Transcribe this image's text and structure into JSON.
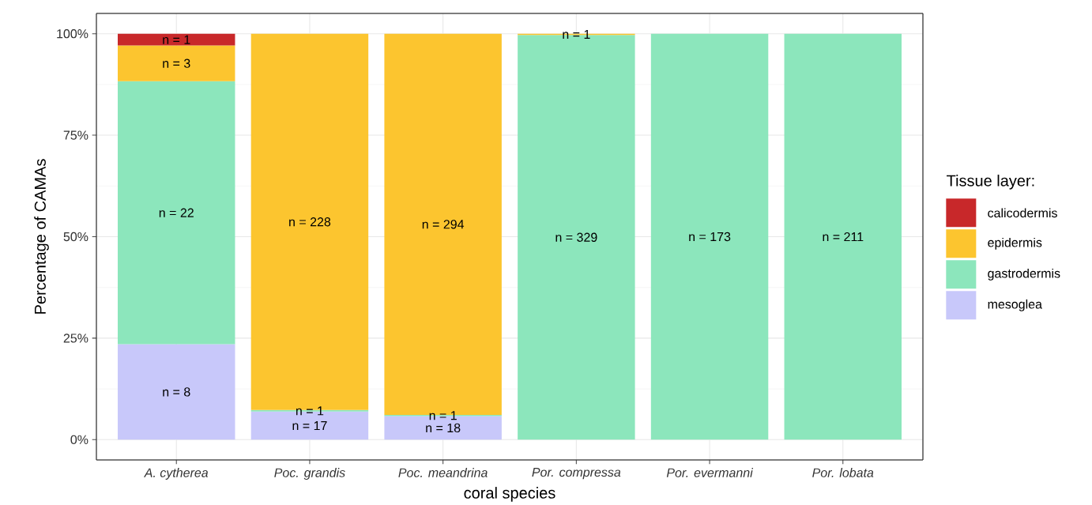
{
  "chart_data": {
    "type": "bar",
    "stacked": true,
    "xlabel": "coral species",
    "ylabel": "Percentage of CAMAs",
    "legend_title": "Tissue layer:",
    "legend": "right",
    "grid": true,
    "categories": [
      "A. cytherea",
      "Poc. grandis",
      "Poc. meandrina",
      "Por. compressa",
      "Por. evermanni",
      "Por. lobata"
    ],
    "ylim": [
      -5,
      105
    ],
    "yticks": [
      {
        "value": 0,
        "label": "0%"
      },
      {
        "value": 25,
        "label": "25%"
      },
      {
        "value": 50,
        "label": "50%"
      },
      {
        "value": 75,
        "label": "75%"
      },
      {
        "value": 100,
        "label": "100%"
      }
    ],
    "series": [
      {
        "name": "mesoglea",
        "color": "#c8c8fa",
        "values": [
          23.5,
          6.9,
          5.8,
          null,
          null,
          null
        ]
      },
      {
        "name": "gastrodermis",
        "color": "#8ce6bc",
        "values": [
          64.8,
          0.4,
          0.3,
          99.7,
          100,
          100
        ]
      },
      {
        "name": "epidermis",
        "color": "#fcc52f",
        "values": [
          8.8,
          92.7,
          93.9,
          0.3,
          null,
          null
        ]
      },
      {
        "name": "calicodermis",
        "color": "#c8282a",
        "values": [
          2.9,
          null,
          null,
          null,
          null,
          null
        ]
      }
    ],
    "annotations": [
      "n = 8",
      "n = 22",
      "n = 3",
      "n = 1",
      "n = 17",
      "n = 1",
      "n = 228",
      "n = 18",
      "n = 1",
      "n = 294",
      "n = 329",
      "n = 1",
      "n = 173",
      "n = 211"
    ]
  }
}
